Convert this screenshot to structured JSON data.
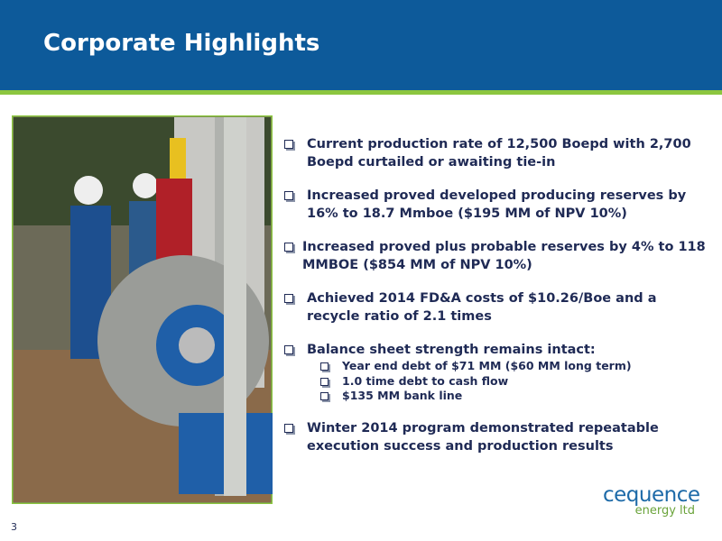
{
  "header": {
    "title": "Corporate Highlights"
  },
  "bullets": [
    {
      "text": "Current production rate of 12,500 Boepd with 2,700 Boepd curtailed or awaiting tie-in"
    },
    {
      "text": "Increased proved developed producing reserves by 16% to 18.7 Mmboe ($195 MM of NPV 10%)"
    },
    {
      "text": "Increased proved plus probable reserves by 4% to 118 MMBOE ($854 MM of NPV 10%)"
    },
    {
      "text": "Achieved 2014 FD&A costs of $10.26/Boe and a recycle ratio of 2.1 times"
    },
    {
      "text": "Balance sheet strength remains intact:",
      "sub": [
        "Year end debt of $71 MM ($60 MM long term)",
        "1.0 time debt to cash flow",
        "$135 MM bank line"
      ]
    },
    {
      "text": "Winter 2014 program demonstrated repeatable execution success and production results"
    }
  ],
  "logo": {
    "name": "cequence",
    "tagline": "energy ltd"
  },
  "page_number": "3"
}
